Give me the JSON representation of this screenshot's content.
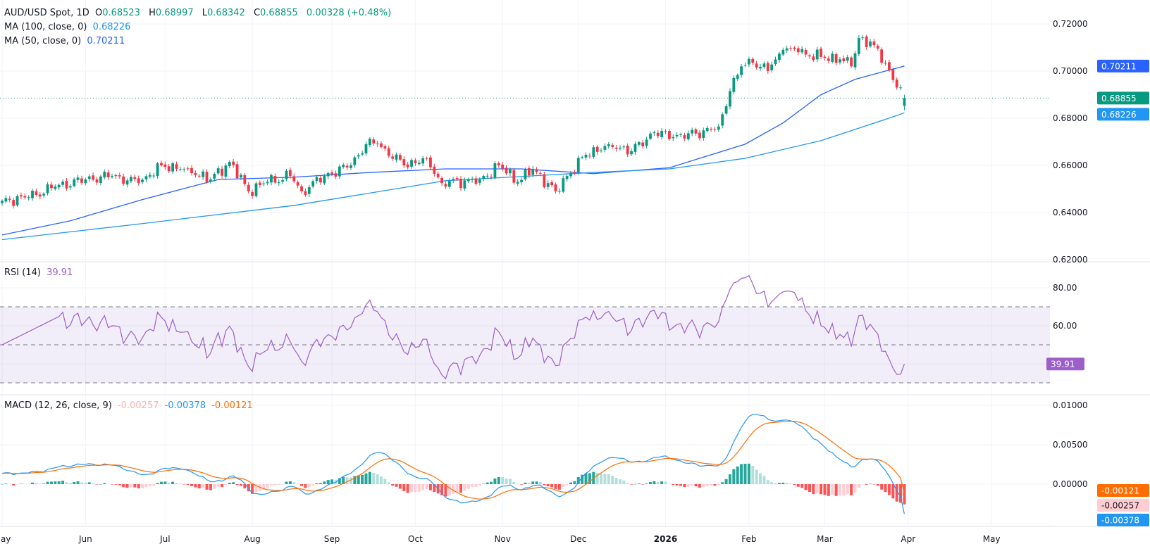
{
  "header": {
    "symbol": "AUD/USD Spot, 1D",
    "open_label": "O",
    "open": "0.68523",
    "high_label": "H",
    "high": "0.68997",
    "low_label": "L",
    "low": "0.68342",
    "close_label": "C",
    "close": "0.68855",
    "change": "0.00328 (+0.48%)"
  },
  "indicators": {
    "ma100": {
      "label": "MA (100, close, 0)",
      "value": "0.68226",
      "color": "#2196f3"
    },
    "ma50": {
      "label": "MA (50, close, 0)",
      "value": "0.70211",
      "color": "#2962ff"
    },
    "rsi": {
      "label": "RSI (14)",
      "value": "39.91",
      "color": "#9c5ec9"
    },
    "macd": {
      "label": "MACD (12, 26, close, 9)",
      "hist": "-0.00257",
      "macd": "-0.00378",
      "signal": "-0.00121",
      "macd_color": "#2196f3",
      "signal_color": "#ff6d00"
    }
  },
  "colors": {
    "up": "#089981",
    "down": "#f23645",
    "grid": "#f0f3fa"
  },
  "chart_data": [
    {
      "type": "candlestick",
      "title": "AUD/USD Spot, 1D",
      "ylim": [
        0.615,
        0.725
      ],
      "y_ticks": [
        "0.72000",
        "0.70000",
        "0.68000",
        "0.66000",
        "0.64000",
        "0.62000"
      ],
      "last_bar": {
        "date": "2026-03-31",
        "open": 0.68523,
        "high": 0.68997,
        "low": 0.68342,
        "close": 0.68855
      },
      "close_path": [
        [
          "2025-05-01",
          0.645
        ],
        [
          "2025-05-12",
          0.6465
        ],
        [
          "2025-05-21",
          0.651
        ],
        [
          "2025-06-02",
          0.654
        ],
        [
          "2025-06-11",
          0.6555
        ],
        [
          "2025-06-20",
          0.6525
        ],
        [
          "2025-06-30",
          0.66
        ],
        [
          "2025-07-09",
          0.6585
        ],
        [
          "2025-07-17",
          0.654
        ],
        [
          "2025-07-24",
          0.6615
        ],
        [
          "2025-07-31",
          0.649
        ],
        [
          "2025-08-07",
          0.653
        ],
        [
          "2025-08-15",
          0.6555
        ],
        [
          "2025-08-20",
          0.649
        ],
        [
          "2025-08-28",
          0.6555
        ],
        [
          "2025-09-08",
          0.66
        ],
        [
          "2025-09-12",
          0.669
        ],
        [
          "2025-09-17",
          0.669
        ],
        [
          "2025-09-26",
          0.66
        ],
        [
          "2025-10-06",
          0.663
        ],
        [
          "2025-10-10",
          0.6525
        ],
        [
          "2025-10-24",
          0.654
        ],
        [
          "2025-10-31",
          0.66
        ],
        [
          "2025-11-07",
          0.653
        ],
        [
          "2025-11-13",
          0.6585
        ],
        [
          "2025-11-21",
          0.649
        ],
        [
          "2025-11-26",
          0.6555
        ],
        [
          "2025-12-03",
          0.6645
        ],
        [
          "2025-12-11",
          0.669
        ],
        [
          "2025-12-19",
          0.666
        ],
        [
          "2025-12-29",
          0.674
        ],
        [
          "2026-01-05",
          0.672
        ],
        [
          "2026-01-13",
          0.6735
        ],
        [
          "2026-01-21",
          0.6765
        ],
        [
          "2026-01-26",
          0.6915
        ],
        [
          "2026-01-29",
          0.702
        ],
        [
          "2026-02-03",
          0.7035
        ],
        [
          "2026-02-09",
          0.7
        ],
        [
          "2026-02-13",
          0.709
        ],
        [
          "2026-02-19",
          0.708
        ],
        [
          "2026-02-27",
          0.706
        ],
        [
          "2026-03-06",
          0.705
        ],
        [
          "2026-03-11",
          0.702
        ],
        [
          "2026-03-13",
          0.714
        ],
        [
          "2026-03-19",
          0.711
        ],
        [
          "2026-03-24",
          0.7035
        ],
        [
          "2026-03-27",
          0.693
        ],
        [
          "2026-03-31",
          0.68855
        ]
      ],
      "series": [
        {
          "name": "MA (50, close, 0)",
          "color": "#2962ff",
          "values": [
            [
              "2025-05-01",
              0.6305
            ],
            [
              "2025-05-27",
              0.6365
            ],
            [
              "2025-06-23",
              0.6455
            ],
            [
              "2025-07-21",
              0.654
            ],
            [
              "2025-08-18",
              0.655
            ],
            [
              "2025-09-15",
              0.657
            ],
            [
              "2025-10-13",
              0.6585
            ],
            [
              "2025-11-10",
              0.6585
            ],
            [
              "2025-12-05",
              0.6565
            ],
            [
              "2026-01-02",
              0.659
            ],
            [
              "2026-01-30",
              0.669
            ],
            [
              "2026-02-13",
              0.678
            ],
            [
              "2026-02-27",
              0.69
            ],
            [
              "2026-03-12",
              0.6965
            ],
            [
              "2026-03-24",
              0.7
            ],
            [
              "2026-03-31",
              0.70211
            ]
          ]
        },
        {
          "name": "MA (100, close, 0)",
          "color": "#2196f3",
          "values": [
            [
              "2025-05-01",
              0.6285
            ],
            [
              "2025-06-23",
              0.6353
            ],
            [
              "2025-08-18",
              0.643
            ],
            [
              "2025-10-13",
              0.6535
            ],
            [
              "2025-12-05",
              0.657
            ],
            [
              "2026-01-02",
              0.6585
            ],
            [
              "2026-01-30",
              0.663
            ],
            [
              "2026-02-27",
              0.6705
            ],
            [
              "2026-03-24",
              0.6795
            ],
            [
              "2026-03-31",
              0.68226
            ]
          ]
        }
      ]
    },
    {
      "type": "line",
      "title": "RSI (14)",
      "ylim": [
        20,
        88
      ],
      "y_ticks": [
        "80.00",
        "60.00"
      ],
      "bands": [
        70,
        50,
        30
      ],
      "last": 39.91
    },
    {
      "type": "bar+line",
      "title": "MACD (12, 26, close, 9)",
      "y_ticks": [
        "0.01000",
        "0.00500",
        "0.00000"
      ],
      "last": {
        "histogram": -0.00257,
        "macd": -0.00378,
        "signal": -0.00121
      }
    }
  ],
  "time_axis": [
    {
      "label": "May",
      "date": "2025-05-01"
    },
    {
      "label": "Jun",
      "date": "2025-06-02"
    },
    {
      "label": "Jul",
      "date": "2025-07-01"
    },
    {
      "label": "Aug",
      "date": "2025-08-01"
    },
    {
      "label": "Sep",
      "date": "2025-09-01"
    },
    {
      "label": "Oct",
      "date": "2025-10-01"
    },
    {
      "label": "Nov",
      "date": "2025-11-03"
    },
    {
      "label": "Dec",
      "date": "2025-12-01"
    },
    {
      "label": "2026",
      "date": "2026-01-01",
      "bold": true
    },
    {
      "label": "Feb",
      "date": "2026-02-02"
    },
    {
      "label": "Mar",
      "date": "2026-03-02"
    },
    {
      "label": "Apr",
      "date": "2026-04-01"
    },
    {
      "label": "May",
      "date": "2026-05-01"
    }
  ]
}
